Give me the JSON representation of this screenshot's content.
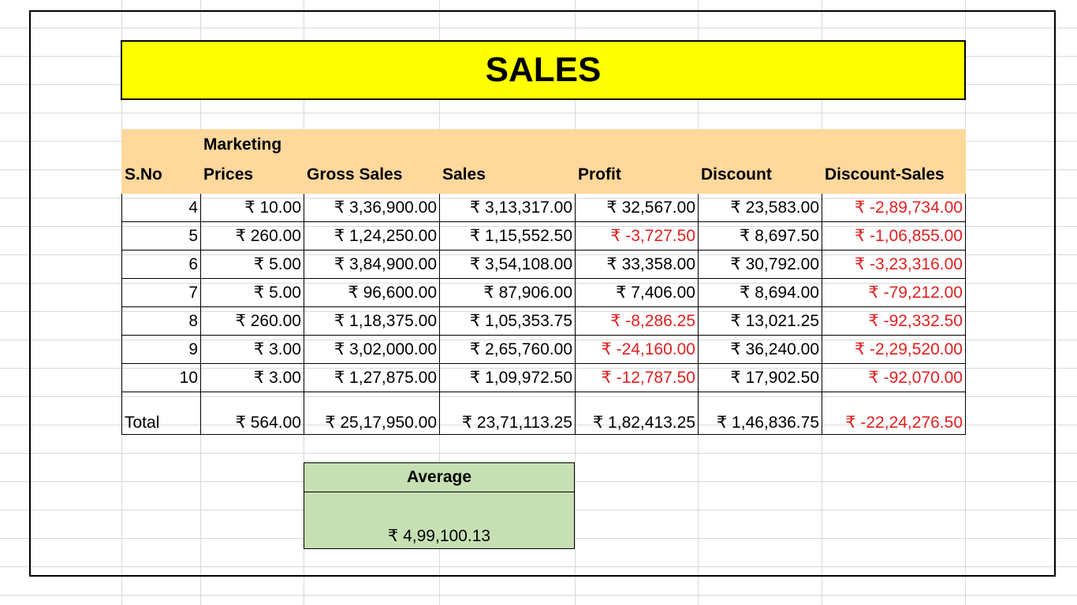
{
  "title": "SALES",
  "headers": [
    "S.No",
    "Marketing Prices",
    "Gross Sales",
    "Sales",
    "Profit",
    "Discount",
    "Discount-Sales"
  ],
  "rows": [
    {
      "sno": "4",
      "marketing": "₹ 10.00",
      "gross": "₹ 3,36,900.00",
      "sales": "₹ 3,13,317.00",
      "profit": "₹ 32,567.00",
      "discount": "₹ 23,583.00",
      "disc_sales": "₹ -2,89,734.00"
    },
    {
      "sno": "5",
      "marketing": "₹ 260.00",
      "gross": "₹ 1,24,250.00",
      "sales": "₹ 1,15,552.50",
      "profit": "₹ -3,727.50",
      "discount": "₹ 8,697.50",
      "disc_sales": "₹ -1,06,855.00"
    },
    {
      "sno": "6",
      "marketing": "₹ 5.00",
      "gross": "₹ 3,84,900.00",
      "sales": "₹ 3,54,108.00",
      "profit": "₹ 33,358.00",
      "discount": "₹ 30,792.00",
      "disc_sales": "₹ -3,23,316.00"
    },
    {
      "sno": "7",
      "marketing": "₹ 5.00",
      "gross": "₹ 96,600.00",
      "sales": "₹ 87,906.00",
      "profit": "₹ 7,406.00",
      "discount": "₹ 8,694.00",
      "disc_sales": "₹ -79,212.00"
    },
    {
      "sno": "8",
      "marketing": "₹ 260.00",
      "gross": "₹ 1,18,375.00",
      "sales": "₹ 1,05,353.75",
      "profit": "₹ -8,286.25",
      "discount": "₹ 13,021.25",
      "disc_sales": "₹ -92,332.50"
    },
    {
      "sno": "9",
      "marketing": "₹ 3.00",
      "gross": "₹ 3,02,000.00",
      "sales": "₹ 2,65,760.00",
      "profit": "₹ -24,160.00",
      "discount": "₹ 36,240.00",
      "disc_sales": "₹ -2,29,520.00"
    },
    {
      "sno": "10",
      "marketing": "₹ 3.00",
      "gross": "₹ 1,27,875.00",
      "sales": "₹ 1,09,972.50",
      "profit": "₹ -12,787.50",
      "discount": "₹ 17,902.50",
      "disc_sales": "₹ -92,070.00"
    }
  ],
  "total": {
    "label": "Total",
    "marketing": "₹ 564.00",
    "gross": "₹ 25,17,950.00",
    "sales": "₹ 23,71,113.25",
    "profit": "₹ 1,82,413.25",
    "discount": "₹ 1,46,836.75",
    "disc_sales": "₹ -22,24,276.50"
  },
  "average": {
    "label": "Average",
    "value": "₹ 4,99,100.13"
  },
  "colors": {
    "title_bg": "#ffff00",
    "header_bg": "#ffd89c",
    "average_bg": "#c6e0b4",
    "negative_text": "#e02020"
  }
}
